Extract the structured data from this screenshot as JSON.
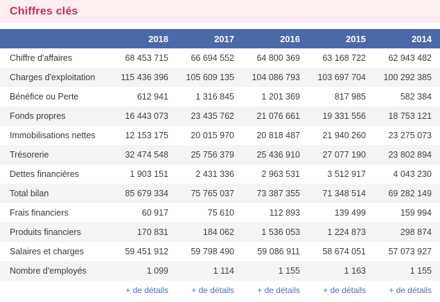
{
  "page": {
    "title": "Chiffres clés"
  },
  "table": {
    "years": [
      "2018",
      "2017",
      "2016",
      "2015",
      "2014"
    ],
    "rows": [
      {
        "label": "Chiffre d'affaires",
        "values": [
          "68 453 715",
          "66 694 552",
          "64 800 369",
          "63 168 722",
          "62 943 482"
        ]
      },
      {
        "label": "Charges d'exploitation",
        "values": [
          "115 436 396",
          "105 609 135",
          "104 086 793",
          "103 697 704",
          "100 292 385"
        ]
      },
      {
        "label": "Bénéfice ou Perte",
        "values": [
          "612 941",
          "1 316 845",
          "1 201 369",
          "817 985",
          "582 384"
        ]
      },
      {
        "label": "Fonds propres",
        "values": [
          "16 443 073",
          "23 435 762",
          "21 076 661",
          "19 331 556",
          "18 753 121"
        ]
      },
      {
        "label": "Immobilisations nettes",
        "values": [
          "12 153 175",
          "20 015 970",
          "20 818 487",
          "21 940 260",
          "23 275 073"
        ]
      },
      {
        "label": "Trésorerie",
        "values": [
          "32 474 548",
          "25 756 379",
          "25 436 910",
          "27 077 190",
          "23 802 894"
        ]
      },
      {
        "label": "Dettes financières",
        "values": [
          "1 903 151",
          "2 431 336",
          "2 963 531",
          "3 512 917",
          "4 043 230"
        ]
      },
      {
        "label": "Total bilan",
        "values": [
          "85 679 334",
          "75 765 037",
          "73 387 355",
          "71 348 514",
          "69 282 149"
        ]
      },
      {
        "label": "Frais financiers",
        "values": [
          "60 917",
          "75 610",
          "112 893",
          "139 499",
          "159 994"
        ]
      },
      {
        "label": "Produits financiers",
        "values": [
          "170 831",
          "184 062",
          "1 536 053",
          "1 224 873",
          "298 874"
        ]
      },
      {
        "label": "Salaires et charges",
        "values": [
          "59 451 912",
          "59 798 490",
          "59 086 911",
          "58 674 051",
          "57 073 927"
        ]
      },
      {
        "label": "Nombre d'employés",
        "values": [
          "1 099",
          "1 114",
          "1 155",
          "1 163",
          "1 155"
        ]
      }
    ],
    "details_link_label": "+ de détails"
  },
  "colors": {
    "accent_red": "#c13351",
    "band_pink": "#fdeef0",
    "header_blue": "#4a69a8",
    "stripe_gray": "#f4f4f4",
    "link_blue": "#4a70bf"
  }
}
